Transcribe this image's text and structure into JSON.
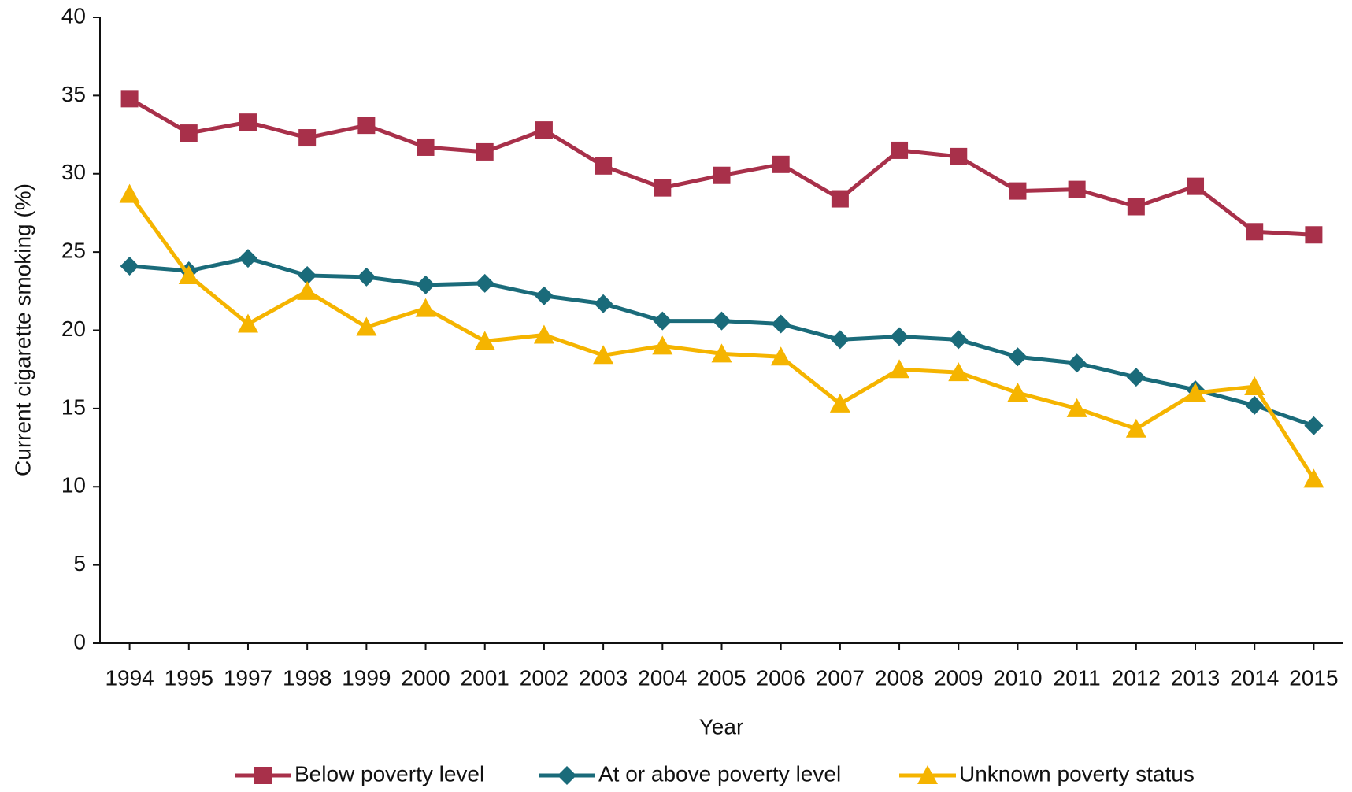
{
  "chart_data": {
    "type": "line",
    "x_label": "Year",
    "y_label": "Current cigarette smoking (%)",
    "categories": [
      "1994",
      "1995",
      "1997",
      "1998",
      "1999",
      "2000",
      "2001",
      "2002",
      "2003",
      "2004",
      "2005",
      "2006",
      "2007",
      "2008",
      "2009",
      "2010",
      "2011",
      "2012",
      "2013",
      "2014",
      "2015"
    ],
    "series": [
      {
        "name": "Below poverty level",
        "color": "#a8304a",
        "marker": "square",
        "values": [
          34.8,
          32.6,
          33.3,
          32.3,
          33.1,
          31.7,
          31.4,
          32.8,
          30.5,
          29.1,
          29.9,
          30.6,
          28.4,
          31.5,
          31.1,
          28.9,
          29.0,
          27.9,
          29.2,
          26.3,
          26.1
        ]
      },
      {
        "name": "At or above poverty level",
        "color": "#1a6b7a",
        "marker": "diamond",
        "values": [
          24.1,
          23.8,
          24.6,
          23.5,
          23.4,
          22.9,
          23.0,
          22.2,
          21.7,
          20.6,
          20.6,
          20.4,
          19.4,
          19.6,
          19.4,
          18.3,
          17.9,
          17.0,
          16.2,
          15.2,
          13.9
        ]
      },
      {
        "name": "Unknown poverty status",
        "color": "#f5b400",
        "marker": "triangle",
        "values": [
          28.7,
          23.5,
          20.4,
          22.5,
          20.2,
          21.4,
          19.3,
          19.7,
          18.4,
          19.0,
          18.5,
          18.3,
          15.3,
          17.5,
          17.3,
          16.0,
          15.0,
          13.7,
          16.0,
          16.4,
          10.5
        ]
      }
    ],
    "ylim": [
      0,
      40
    ],
    "yticks": [
      0,
      5,
      10,
      15,
      20,
      25,
      30,
      35,
      40
    ],
    "grid": false,
    "legend": "bottom"
  }
}
